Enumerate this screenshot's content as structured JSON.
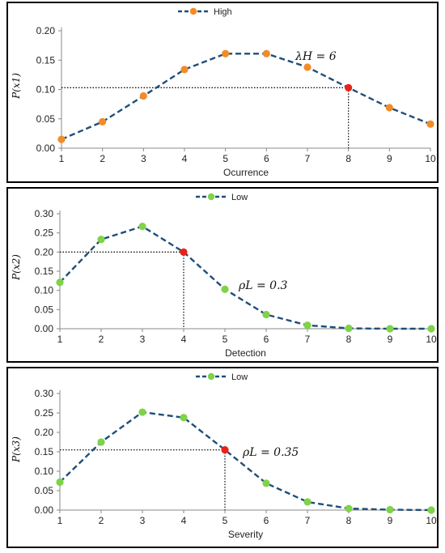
{
  "chart_data": [
    {
      "type": "line",
      "categories": [
        1,
        2,
        3,
        4,
        5,
        6,
        7,
        8,
        9,
        10
      ],
      "series": [
        {
          "name": "High",
          "values": [
            0.015,
            0.045,
            0.089,
            0.134,
            0.161,
            0.161,
            0.138,
            0.103,
            0.069,
            0.041
          ]
        }
      ],
      "highlight": {
        "x": 8,
        "y": 0.103
      },
      "xlabel": "Ocurrence",
      "ylabel": "P(x1)",
      "ylim": [
        0,
        0.2
      ],
      "yticks": [
        "0.00",
        "0.05",
        "0.10",
        "0.15",
        "0.20"
      ],
      "annotation": "λH = 6",
      "legend": "top-center",
      "colors": {
        "line": "#1f4e79",
        "marker": "#f28c28",
        "highlight": "#e8221b"
      }
    },
    {
      "type": "line",
      "categories": [
        1,
        2,
        3,
        4,
        5,
        6,
        7,
        8,
        9,
        10
      ],
      "series": [
        {
          "name": "Low",
          "values": [
            0.121,
            0.233,
            0.267,
            0.2,
            0.103,
            0.037,
            0.009,
            0.001,
            0.0,
            0.0
          ]
        }
      ],
      "highlight": {
        "x": 4,
        "y": 0.2
      },
      "xlabel": "Detection",
      "ylabel": "P(x2)",
      "ylim": [
        0,
        0.3
      ],
      "yticks": [
        "0.00",
        "0.05",
        "0.10",
        "0.15",
        "0.20",
        "0.25",
        "0.30"
      ],
      "annotation": "ρL = 0.3",
      "legend": "top-left",
      "colors": {
        "line": "#1f4e79",
        "marker": "#7ed348",
        "highlight": "#e8221b"
      }
    },
    {
      "type": "line",
      "categories": [
        1,
        2,
        3,
        4,
        5,
        6,
        7,
        8,
        9,
        10
      ],
      "series": [
        {
          "name": "Low",
          "values": [
            0.072,
            0.175,
            0.252,
            0.238,
            0.155,
            0.069,
            0.021,
            0.004,
            0.001,
            0.0
          ]
        }
      ],
      "highlight": {
        "x": 5,
        "y": 0.155
      },
      "xlabel": "Severity",
      "ylabel": "P(x3)",
      "ylim": [
        0,
        0.3
      ],
      "yticks": [
        "0.00",
        "0.05",
        "0.10",
        "0.15",
        "0.20",
        "0.25",
        "0.30"
      ],
      "annotation": "ρL = 0.35",
      "legend": "top-left",
      "colors": {
        "line": "#1f4e79",
        "marker": "#7ed348",
        "highlight": "#e8221b"
      }
    }
  ]
}
